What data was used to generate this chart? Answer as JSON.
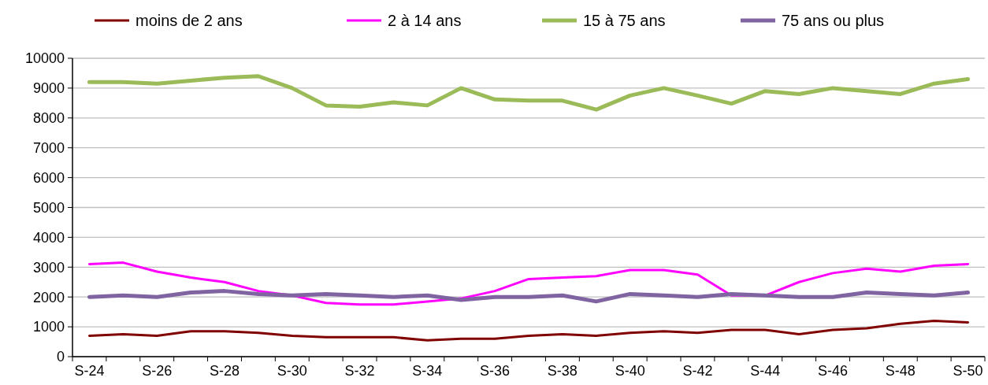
{
  "chart_data": {
    "type": "line",
    "categories": [
      "S-24",
      null,
      "S-26",
      null,
      "S-28",
      null,
      "S-30",
      null,
      "S-32",
      null,
      "S-34",
      null,
      "S-36",
      null,
      "S-38",
      null,
      "S-40",
      null,
      "S-42",
      null,
      "S-44",
      null,
      "S-46",
      null,
      "S-48",
      null,
      "S-50"
    ],
    "series": [
      {
        "name": "moins de 2 ans",
        "color": "#800000",
        "values": [
          700,
          750,
          700,
          850,
          850,
          800,
          700,
          650,
          650,
          650,
          550,
          600,
          600,
          700,
          750,
          700,
          800,
          850,
          800,
          900,
          900,
          750,
          900,
          950,
          1100,
          1200,
          1150
        ]
      },
      {
        "name": "2 à 14 ans",
        "color": "#ff00ff",
        "values": [
          3100,
          3150,
          2850,
          2650,
          2500,
          2200,
          2050,
          1800,
          1750,
          1750,
          1850,
          1950,
          2200,
          2600,
          2650,
          2700,
          2900,
          2900,
          2750,
          2050,
          2050,
          2500,
          2800,
          2950,
          2850,
          3050,
          3100
        ]
      },
      {
        "name": "15 à 75 ans",
        "color": "#9bbb59",
        "values": [
          9200,
          9200,
          9150,
          9250,
          9350,
          9400,
          9000,
          8420,
          8380,
          8520,
          8420,
          9000,
          8620,
          8580,
          8580,
          8280,
          8750,
          9000,
          8750,
          8480,
          8900,
          8800,
          9000,
          8900,
          8800,
          9150,
          9300
        ]
      },
      {
        "name": "75 ans ou plus",
        "color": "#8064a2",
        "values": [
          2000,
          2050,
          2000,
          2150,
          2200,
          2100,
          2050,
          2100,
          2050,
          2000,
          2050,
          1900,
          2000,
          2000,
          2050,
          1850,
          2100,
          2050,
          2000,
          2100,
          2050,
          2000,
          2000,
          2150,
          2100,
          2050,
          2150
        ]
      }
    ],
    "ylim": [
      0,
      10000
    ],
    "yticks": [
      0,
      1000,
      2000,
      3000,
      4000,
      5000,
      6000,
      7000,
      8000,
      9000,
      10000
    ],
    "grid": "y",
    "legend": "top",
    "marker": "none",
    "line_style": "solid"
  }
}
